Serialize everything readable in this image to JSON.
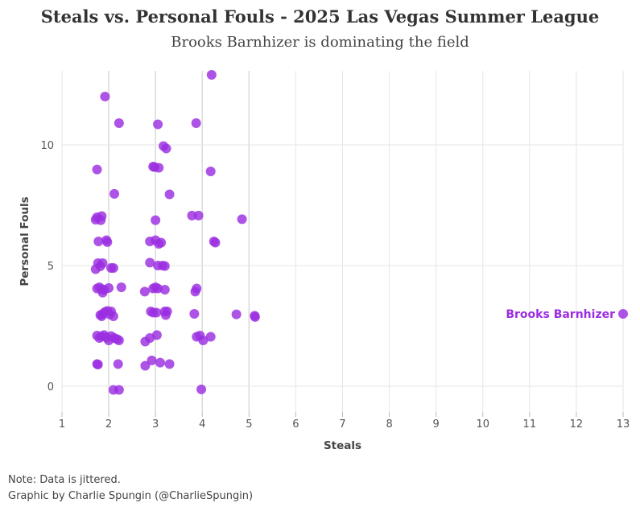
{
  "chart_data": {
    "type": "scatter",
    "title": "Steals vs. Personal Fouls - 2025 Las Vegas Summer League",
    "subtitle": "Brooks Barnhizer is dominating the field",
    "xlabel": "Steals",
    "ylabel": "Personal Fouls",
    "xlim": [
      1,
      13
    ],
    "ylim": [
      -1,
      13
    ],
    "x_ticks": [
      1,
      2,
      3,
      4,
      5,
      6,
      7,
      8,
      9,
      10,
      11,
      12,
      13
    ],
    "y_ticks": [
      0,
      5,
      10
    ],
    "grid": true,
    "point_color": "#9b2ee0",
    "annotations": [
      {
        "text": "Brooks Barnhizer",
        "x": 13,
        "y": 3,
        "color": "#9b2ee0"
      }
    ],
    "points": [
      [
        4.2,
        12.9
      ],
      [
        1.92,
        12.0
      ],
      [
        2.22,
        10.9
      ],
      [
        3.05,
        10.85
      ],
      [
        3.87,
        10.9
      ],
      [
        3.17,
        9.95
      ],
      [
        3.23,
        9.85
      ],
      [
        1.75,
        8.98
      ],
      [
        2.95,
        9.1
      ],
      [
        2.98,
        9.08
      ],
      [
        3.07,
        9.05
      ],
      [
        4.18,
        8.9
      ],
      [
        2.12,
        7.97
      ],
      [
        3.3,
        7.95
      ],
      [
        1.75,
        7.0
      ],
      [
        1.72,
        6.9
      ],
      [
        1.83,
        6.88
      ],
      [
        1.85,
        7.05
      ],
      [
        3.0,
        6.88
      ],
      [
        3.78,
        7.07
      ],
      [
        3.92,
        7.07
      ],
      [
        4.85,
        6.92
      ],
      [
        1.78,
        6.0
      ],
      [
        1.95,
        6.05
      ],
      [
        1.97,
        5.97
      ],
      [
        2.88,
        6.0
      ],
      [
        3.0,
        6.05
      ],
      [
        3.07,
        5.9
      ],
      [
        3.12,
        5.95
      ],
      [
        4.25,
        6.0
      ],
      [
        4.28,
        5.95
      ],
      [
        1.72,
        4.85
      ],
      [
        1.77,
        5.1
      ],
      [
        1.82,
        4.97
      ],
      [
        1.87,
        5.1
      ],
      [
        2.05,
        4.9
      ],
      [
        2.1,
        4.9
      ],
      [
        2.88,
        5.12
      ],
      [
        3.05,
        5.0
      ],
      [
        3.15,
        5.0
      ],
      [
        3.2,
        4.98
      ],
      [
        1.75,
        4.05
      ],
      [
        1.8,
        4.1
      ],
      [
        1.85,
        4.02
      ],
      [
        1.9,
        4.0
      ],
      [
        1.87,
        3.88
      ],
      [
        2.0,
        4.07
      ],
      [
        2.27,
        4.1
      ],
      [
        2.77,
        3.92
      ],
      [
        2.95,
        4.05
      ],
      [
        3.0,
        4.1
      ],
      [
        3.05,
        4.05
      ],
      [
        3.2,
        4.0
      ],
      [
        3.85,
        3.92
      ],
      [
        3.88,
        4.05
      ],
      [
        1.82,
        2.95
      ],
      [
        1.87,
        3.0
      ],
      [
        1.92,
        3.08
      ],
      [
        1.97,
        3.12
      ],
      [
        2.02,
        2.98
      ],
      [
        2.05,
        3.1
      ],
      [
        2.1,
        2.9
      ],
      [
        1.85,
        2.9
      ],
      [
        2.9,
        3.1
      ],
      [
        2.95,
        3.05
      ],
      [
        3.02,
        3.05
      ],
      [
        3.2,
        3.1
      ],
      [
        3.22,
        2.95
      ],
      [
        3.25,
        3.1
      ],
      [
        3.83,
        3.0
      ],
      [
        4.73,
        2.98
      ],
      [
        5.12,
        2.92
      ],
      [
        5.13,
        2.87
      ],
      [
        13.0,
        3.0
      ],
      [
        1.75,
        2.1
      ],
      [
        1.8,
        2.0
      ],
      [
        1.85,
        2.07
      ],
      [
        1.9,
        2.12
      ],
      [
        1.95,
        2.02
      ],
      [
        2.0,
        1.9
      ],
      [
        2.05,
        2.08
      ],
      [
        2.12,
        2.0
      ],
      [
        2.18,
        1.95
      ],
      [
        2.22,
        1.9
      ],
      [
        2.78,
        1.85
      ],
      [
        2.88,
        2.0
      ],
      [
        3.03,
        2.12
      ],
      [
        3.88,
        2.05
      ],
      [
        3.95,
        2.1
      ],
      [
        4.02,
        1.9
      ],
      [
        4.18,
        2.05
      ],
      [
        1.77,
        0.9
      ],
      [
        1.75,
        0.92
      ],
      [
        2.2,
        0.92
      ],
      [
        2.78,
        0.85
      ],
      [
        2.92,
        1.07
      ],
      [
        3.1,
        0.98
      ],
      [
        3.3,
        0.92
      ],
      [
        2.1,
        -0.15
      ],
      [
        2.22,
        -0.15
      ],
      [
        3.98,
        -0.13
      ]
    ]
  },
  "caption": {
    "note": "Note: Data is jittered.",
    "credit": "Graphic by Charlie Spungin (@CharlieSpungin)"
  }
}
